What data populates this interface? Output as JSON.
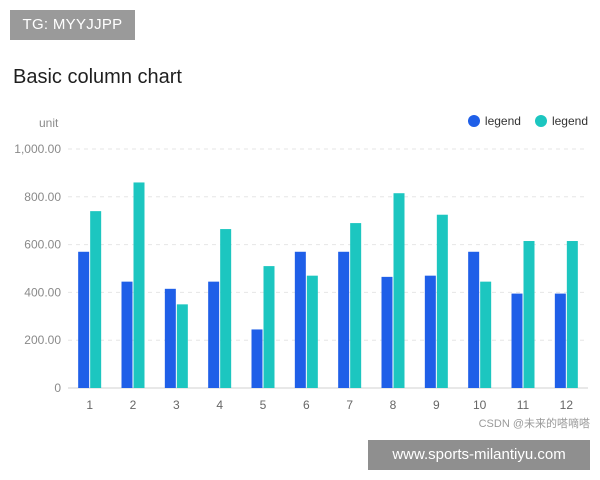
{
  "overlay": {
    "tg_text": "TG: MYYJJPP",
    "url_text": "www.sports-milantiyu.com",
    "csdn_text": "CSDN @未来的嗒嘀嗒"
  },
  "colors": {
    "series1": "#1f5fe8",
    "series2": "#1cc6c0",
    "grid": "#e6e6e6",
    "axis_text": "#8a8a8a"
  },
  "chart_data": {
    "type": "bar",
    "title": "Basic column chart",
    "ylabel": "unit",
    "xlabel": "",
    "categories": [
      "1",
      "2",
      "3",
      "4",
      "5",
      "6",
      "7",
      "8",
      "9",
      "10",
      "11",
      "12"
    ],
    "series": [
      {
        "name": "legend",
        "values": [
          570,
          445,
          415,
          445,
          245,
          570,
          570,
          465,
          470,
          570,
          395,
          395
        ]
      },
      {
        "name": "legend",
        "values": [
          740,
          860,
          350,
          665,
          510,
          470,
          690,
          815,
          725,
          445,
          615,
          615
        ]
      }
    ],
    "yticks": [
      "0",
      "200.00",
      "400.00",
      "600.00",
      "800.00",
      "1,000.00"
    ],
    "ylim": [
      0,
      1000
    ],
    "grid": true,
    "legend_position": "top-right"
  }
}
